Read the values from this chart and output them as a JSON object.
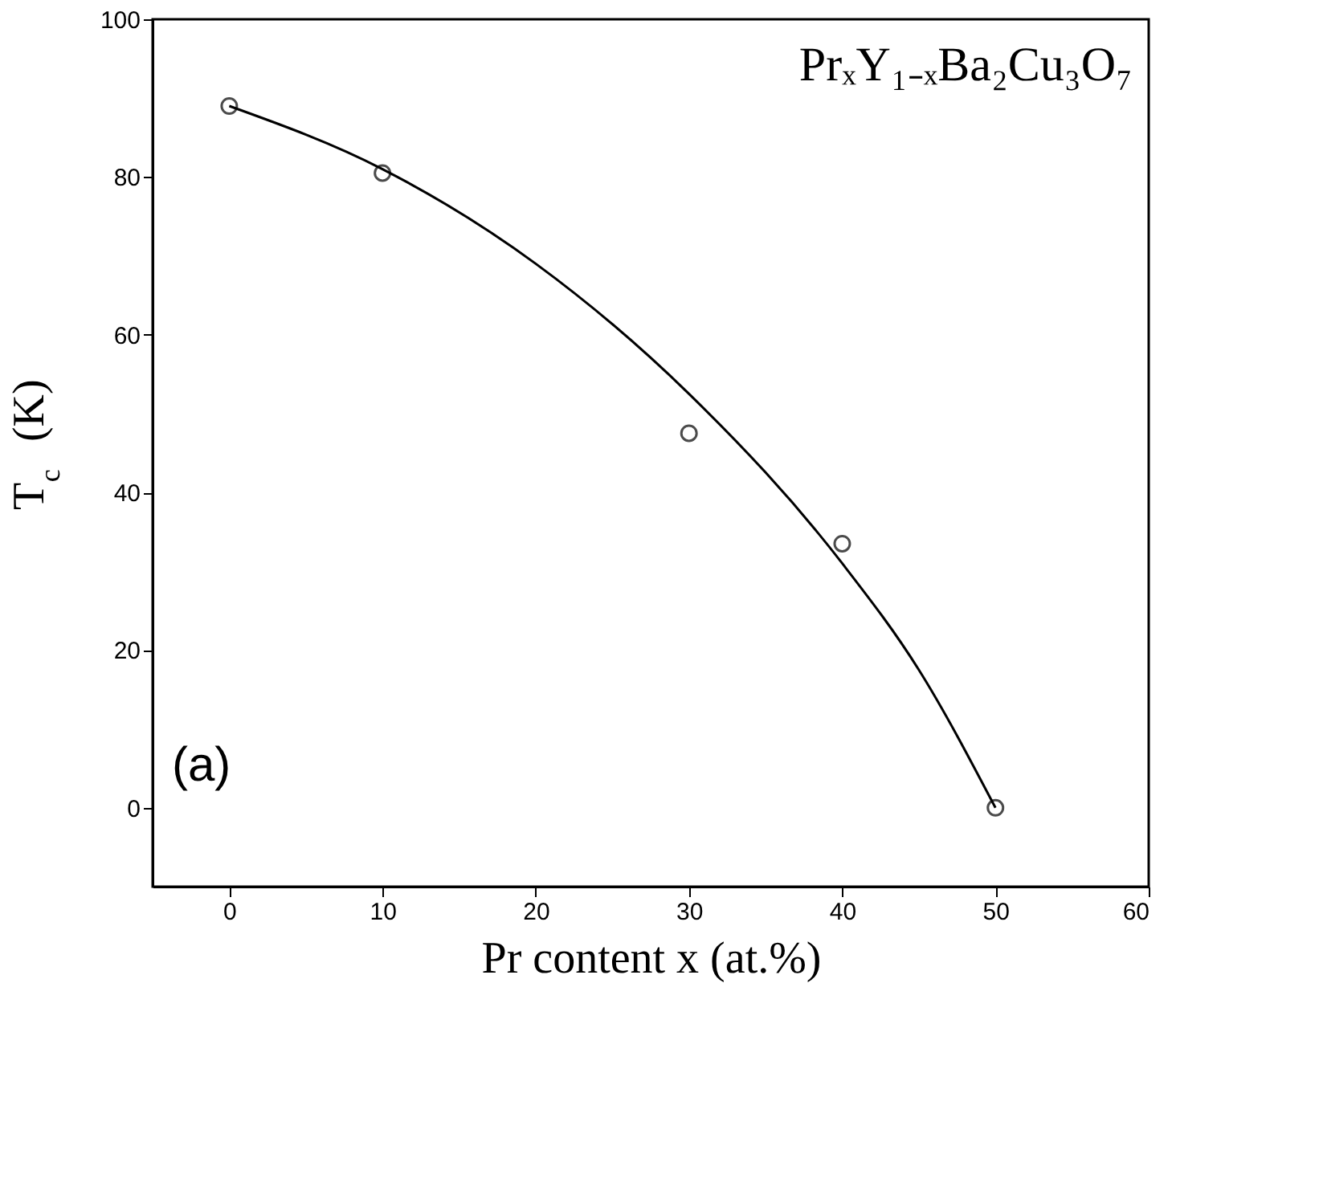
{
  "chart_data": {
    "type": "scatter",
    "xlabel": "Pr content x (at.%)",
    "ylabel": "T$_{c}$ (K)",
    "annotations": [
      "PrₓY₁₋ₓBa₂Cu₃O₇",
      "(a)"
    ],
    "xlim": [
      -5,
      60
    ],
    "xticks": [
      0,
      10,
      20,
      30,
      40,
      50,
      60
    ],
    "ylim": [
      -10,
      100
    ],
    "yticks": [
      0,
      20,
      40,
      60,
      80,
      100
    ],
    "grid": false,
    "series": [
      {
        "marker": "circle",
        "color": "#000000",
        "x": [
          0,
          10,
          30,
          40,
          50
        ],
        "values": [
          89,
          80.5,
          47.5,
          33.5,
          0
        ]
      },
      {
        "type": "line",
        "marker": "none",
        "line_style": "solid",
        "color": "#000000",
        "x": [
          0,
          10,
          20,
          30,
          40,
          45,
          50
        ],
        "values": [
          89,
          81,
          69,
          52.5,
          31,
          17.5,
          0
        ]
      }
    ]
  }
}
